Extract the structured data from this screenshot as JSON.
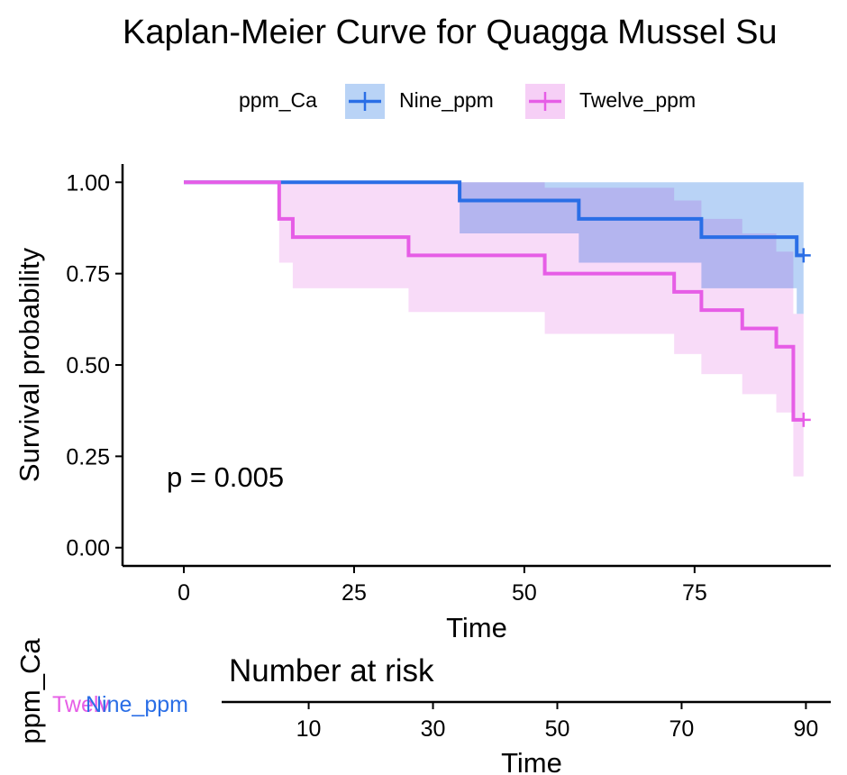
{
  "colors": {
    "nine": "#2a6ee6",
    "twelve": "#e65de6",
    "nine_band": "#b9d3f6",
    "twelve_band": "#f6cff6",
    "overlap_band": "#c7aef0"
  },
  "chart_data": {
    "type": "line",
    "subtype": "kaplan-meier step",
    "title": "Kaplan-Meier Curve for Quagga Mussel Su",
    "xlabel": "Time",
    "ylabel": "Survival probability",
    "xlim": [
      -9,
      95
    ],
    "ylim": [
      -0.05,
      1.05
    ],
    "xticks": [
      "0",
      "25",
      "50",
      "75"
    ],
    "yticks": [
      "0.00",
      "0.25",
      "0.50",
      "0.75",
      "1.00"
    ],
    "grid": false,
    "legend": {
      "title": "ppm_Ca",
      "position": "top",
      "entries": [
        "Nine_ppm",
        "Twelve_ppm"
      ]
    },
    "annotations": [
      "p = 0.005"
    ],
    "series": [
      {
        "name": "Nine_ppm",
        "steps": [
          [
            0,
            1.0
          ],
          [
            40.5,
            0.95
          ],
          [
            58,
            0.9
          ],
          [
            76,
            0.85
          ],
          [
            90,
            0.8
          ]
        ],
        "end_x": 91,
        "censor": [
          [
            91,
            0.8
          ]
        ],
        "ci_lower": [
          [
            0,
            1.0
          ],
          [
            40.5,
            0.86
          ],
          [
            58,
            0.78
          ],
          [
            76,
            0.71
          ],
          [
            90,
            0.64
          ]
        ],
        "ci_upper": [
          [
            0,
            1.0
          ],
          [
            40.5,
            1.0
          ],
          [
            58,
            1.0
          ],
          [
            76,
            1.0
          ],
          [
            90,
            1.0
          ]
        ]
      },
      {
        "name": "Twelve_ppm",
        "steps": [
          [
            0,
            1.0
          ],
          [
            14,
            0.9
          ],
          [
            16,
            0.85
          ],
          [
            33,
            0.8
          ],
          [
            53,
            0.75
          ],
          [
            72,
            0.7
          ],
          [
            76,
            0.65
          ],
          [
            82,
            0.6
          ],
          [
            87,
            0.55
          ],
          [
            89.5,
            0.35
          ]
        ],
        "end_x": 91,
        "censor": [
          [
            91,
            0.35
          ]
        ],
        "ci_lower": [
          [
            0,
            1.0
          ],
          [
            14,
            0.78
          ],
          [
            16,
            0.71
          ],
          [
            33,
            0.645
          ],
          [
            53,
            0.585
          ],
          [
            72,
            0.53
          ],
          [
            76,
            0.475
          ],
          [
            82,
            0.42
          ],
          [
            87,
            0.37
          ],
          [
            89.5,
            0.195
          ]
        ],
        "ci_upper": [
          [
            0,
            1.0
          ],
          [
            14,
            1.0
          ],
          [
            16,
            1.0
          ],
          [
            33,
            1.0
          ],
          [
            53,
            0.985
          ],
          [
            72,
            0.95
          ],
          [
            76,
            0.9
          ],
          [
            82,
            0.86
          ],
          [
            87,
            0.81
          ],
          [
            89.5,
            0.64
          ]
        ]
      }
    ],
    "risk_table": {
      "title": "Number at risk",
      "xlabel": "Time",
      "ylabel": "ppm_Ca",
      "xticks": [
        "10",
        "30",
        "50",
        "70",
        "90"
      ],
      "xlim": [
        -4,
        94
      ],
      "strata": [
        "Twelve_ppm",
        "Nine_ppm"
      ],
      "strata_display": [
        "Twelv",
        "Nine_ppm"
      ]
    }
  }
}
